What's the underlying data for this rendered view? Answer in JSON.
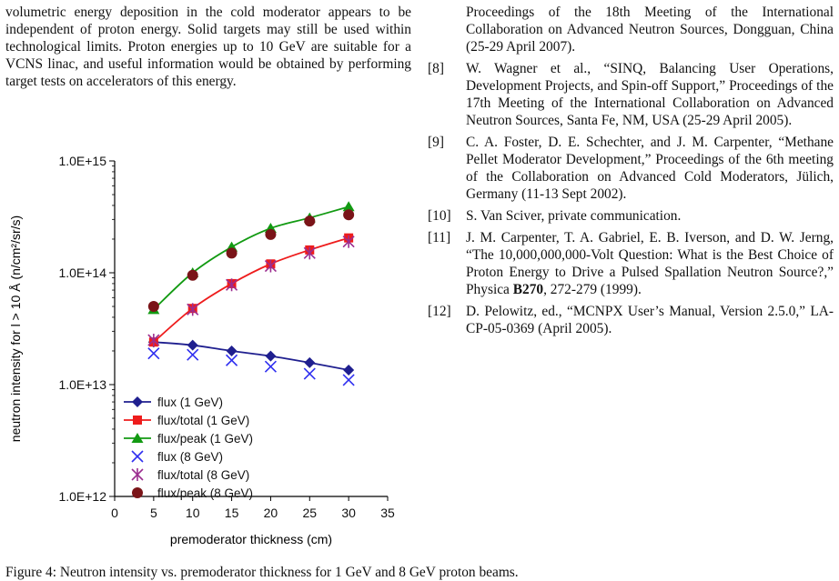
{
  "left_paragraph": "volumetric energy deposition in the cold moderator appears to be independent of proton energy. Solid targets may still be used within technological limits. Proton energies up to 10 GeV are suitable for a VCNS linac, and useful information would be obtained by performing target tests on accelerators of this energy.",
  "caption_fragment": "Figure 4: Neutron intensity vs. premoderator thickness for 1 GeV and 8 GeV proton beams.",
  "references": {
    "continuation": "Proceedings of the 18th Meeting of the International Collaboration on Advanced Neutron Sources, Dongguan, China (25-29 April 2007).",
    "items": [
      {
        "num": "[8]",
        "text": "W. Wagner et al., “SINQ, Balancing User Operations, Development Projects, and Spin-off Support,” Proceedings of the 17th Meeting of the International Collaboration on Advanced Neutron Sources, Santa Fe, NM, USA (25-29 April 2005)."
      },
      {
        "num": "[9]",
        "text": "C. A. Foster, D. E. Schechter, and J. M. Carpenter, “Methane Pellet Moderator Development,” Proceedings of the 6th meeting of the Collaboration on Advanced Cold Moderators, Jülich, Germany (11-13 Sept 2002)."
      },
      {
        "num": "[10]",
        "text": "S. Van Sciver, private communication."
      },
      {
        "num": "[11]",
        "pre": "J. M. Carpenter, T. A. Gabriel, E. B. Iverson, and D. W. Jerng, “The 10,000,000,000-Volt Question: What is the Best Choice of Proton Energy to Drive a Pulsed Spallation Neutron Source?,” Physica ",
        "bold": "B270",
        "post": ", 272-279 (1999)."
      },
      {
        "num": "[12]",
        "text": "D. Pelowitz, ed., “MCNPX User’s Manual, Version 2.5.0,” LA-CP-05-0369 (April 2005)."
      }
    ]
  },
  "chart_data": {
    "type": "scatter",
    "yscale": "log",
    "xlabel": "premoderator thickness (cm)",
    "ylabel": "neutron intensity for l > 10 Å (n/cm²/sr/s)",
    "xlim": [
      0,
      35
    ],
    "ylim": [
      1000000000000.0,
      1000000000000000.0
    ],
    "xticks": [
      "0",
      "5",
      "10",
      "15",
      "20",
      "25",
      "30",
      "35"
    ],
    "yticks": [
      "1.0E+12",
      "1.0E+13",
      "1.0E+14",
      "1.0E+15"
    ],
    "grid": false,
    "legend_position": "bottom-left, inside plot",
    "x": [
      5,
      10,
      15,
      20,
      25,
      30
    ],
    "series": [
      {
        "name": "flux (1 GeV)",
        "marker": "diamond",
        "color": "#1f1f8f",
        "line": true,
        "values": [
          24000000000000.0,
          22500000000000.0,
          20000000000000.0,
          18000000000000.0,
          15700000000000.0,
          13500000000000.0
        ]
      },
      {
        "name": "flux/total (1 GeV)",
        "marker": "square",
        "color": "#ee1c1c",
        "line": true,
        "values": [
          24000000000000.0,
          48000000000000.0,
          80000000000000.0,
          120000000000000.0,
          160000000000000.0,
          205000000000000.0
        ]
      },
      {
        "name": "flux/peak (1 GeV)",
        "marker": "triangle",
        "color": "#129a12",
        "line": true,
        "values": [
          47000000000000.0,
          100000000000000.0,
          170000000000000.0,
          250000000000000.0,
          310000000000000.0,
          390000000000000.0
        ]
      },
      {
        "name": "flux (8 GeV)",
        "marker": "x",
        "color": "#2f2ff0",
        "line": false,
        "values": [
          19000000000000.0,
          18500000000000.0,
          16500000000000.0,
          14500000000000.0,
          12500000000000.0,
          11000000000000.0
        ]
      },
      {
        "name": "flux/total (8 GeV)",
        "marker": "star",
        "color": "#9b2d8f",
        "line": false,
        "values": [
          25000000000000.0,
          47000000000000.0,
          78000000000000.0,
          115000000000000.0,
          150000000000000.0,
          190000000000000.0
        ]
      },
      {
        "name": "flux/peak (8 GeV)",
        "marker": "circle",
        "color": "#7a1418",
        "line": false,
        "values": [
          50000000000000.0,
          95000000000000.0,
          150000000000000.0,
          220000000000000.0,
          290000000000000.0,
          330000000000000.0
        ]
      }
    ]
  }
}
